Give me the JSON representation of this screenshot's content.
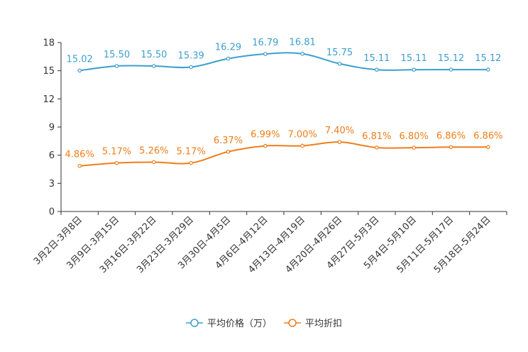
{
  "chart_data": {
    "type": "line",
    "categories": [
      "3月2日-3月8日",
      "3月9日-3月15日",
      "3月16日-3月22日",
      "3月23日-3月29日",
      "3月30日-4月5日",
      "4月6日-4月12日",
      "4月13日-4月19日",
      "4月20日-4月26日",
      "4月27日-5月3日",
      "5月4日-5月10日",
      "5月11日-5月17日",
      "5月18日-5月24日"
    ],
    "series": [
      {
        "name": "平均价格（万）",
        "color": "#3c9fce",
        "values": [
          15.02,
          15.5,
          15.5,
          15.39,
          16.29,
          16.79,
          16.81,
          15.75,
          15.11,
          15.11,
          15.12,
          15.12
        ],
        "labels": [
          "15.02",
          "15.50",
          "15.50",
          "15.39",
          "16.29",
          "16.79",
          "16.81",
          "15.75",
          "15.11",
          "15.11",
          "15.12",
          "15.12"
        ]
      },
      {
        "name": "平均折扣",
        "color": "#f07d1a",
        "values": [
          4.86,
          5.17,
          5.26,
          5.17,
          6.37,
          6.99,
          7.0,
          7.4,
          6.81,
          6.8,
          6.86,
          6.86
        ],
        "labels": [
          "4.86%",
          "5.17%",
          "5.26%",
          "5.17%",
          "6.37%",
          "6.99%",
          "7.00%",
          "7.40%",
          "6.81%",
          "6.80%",
          "6.86%",
          "6.86%"
        ]
      }
    ],
    "yticks": [
      "0",
      "3",
      "6",
      "9",
      "12",
      "15",
      "18"
    ],
    "ylim": [
      0,
      18
    ],
    "title": "",
    "xlabel": "",
    "ylabel": "",
    "legend_position": "bottom-center"
  }
}
